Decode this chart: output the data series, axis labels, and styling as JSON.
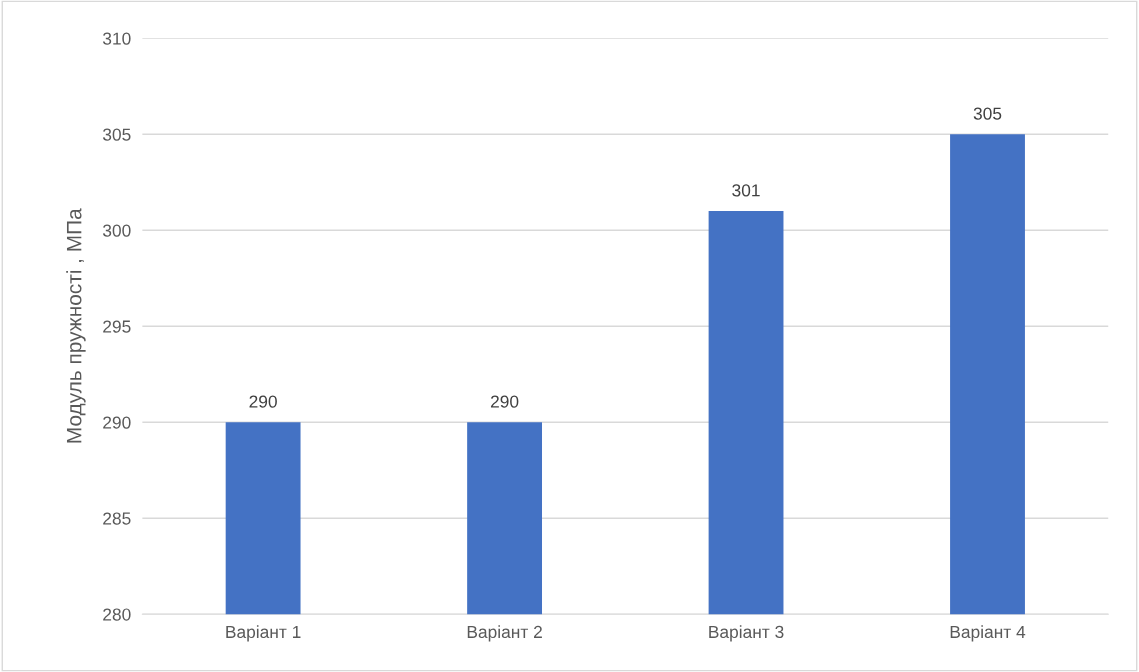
{
  "chart_data": {
    "type": "bar",
    "ylabel": "Модуль пружності , МПа",
    "categories": [
      "Варіант 1",
      "Варіант 2",
      "Варіант 3",
      "Варіант 4"
    ],
    "values": [
      290,
      290,
      301,
      305
    ],
    "color": "#4472c4",
    "ylim": [
      280,
      310
    ],
    "yticks": [
      280,
      285,
      290,
      295,
      300,
      305,
      310
    ],
    "grid": "y",
    "data_labels": true
  }
}
